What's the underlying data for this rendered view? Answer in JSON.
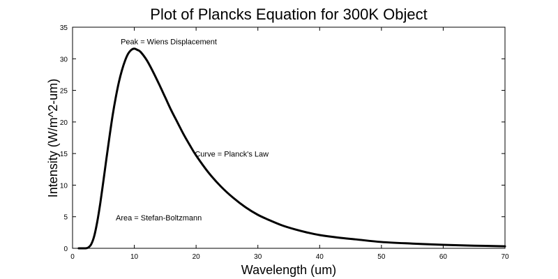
{
  "chart_data": {
    "type": "line",
    "title": "Plot of Plancks Equation for 300K Object",
    "xlabel": "Wavelength (um)",
    "ylabel": "Intensity (W/m^2-um)",
    "xlim": [
      0,
      70
    ],
    "ylim": [
      0,
      35
    ],
    "xticks": [
      0,
      10,
      20,
      30,
      40,
      50,
      60,
      70
    ],
    "yticks": [
      0,
      5,
      10,
      15,
      20,
      25,
      30,
      35
    ],
    "grid": false,
    "legend": "none",
    "line_color": "#000000",
    "series": [
      {
        "x": [
          1,
          2,
          2.5,
          3,
          3.5,
          4,
          4.5,
          5,
          5.5,
          6,
          6.5,
          7,
          7.5,
          8,
          8.5,
          9,
          9.5,
          10,
          10.5,
          11,
          12,
          13,
          14,
          15,
          16,
          17,
          18,
          19,
          20,
          22,
          24,
          26,
          28,
          30,
          32,
          34,
          36,
          38,
          40,
          43,
          46,
          50,
          55,
          60,
          65,
          70
        ],
        "y": [
          0,
          0,
          0.1,
          0.6,
          1.9,
          4.2,
          7.2,
          10.7,
          14.3,
          17.8,
          21.1,
          23.9,
          26.3,
          28.2,
          29.7,
          30.8,
          31.4,
          31.6,
          31.4,
          31.1,
          29.8,
          28.0,
          26.0,
          23.9,
          21.8,
          19.9,
          18.0,
          16.3,
          14.7,
          12.0,
          9.8,
          8.0,
          6.5,
          5.3,
          4.4,
          3.6,
          3.0,
          2.5,
          2.1,
          1.7,
          1.4,
          1.0,
          0.75,
          0.55,
          0.42,
          0.32
        ]
      }
    ],
    "annotations": [
      {
        "text": "Peak = Wiens Displacement",
        "x": 7.8,
        "y": 32.3
      },
      {
        "text": "Curve = Planck's Law",
        "x": 19.8,
        "y": 14.5
      },
      {
        "text": "Area = Stefan-Boltzmann",
        "x": 7.0,
        "y": 4.4
      }
    ]
  }
}
